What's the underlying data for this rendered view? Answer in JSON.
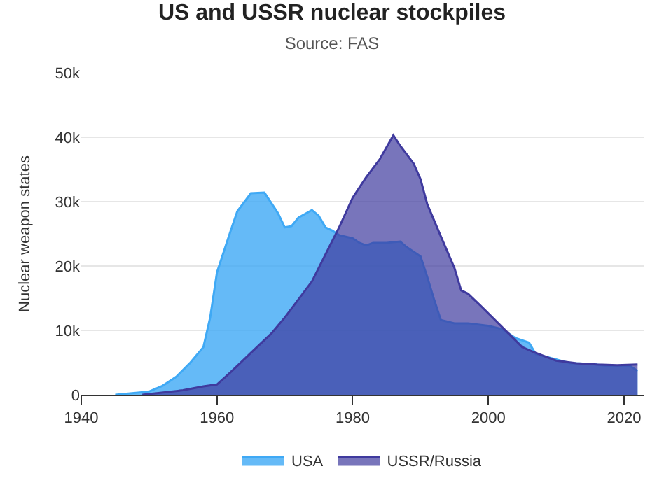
{
  "chart_data": {
    "type": "area",
    "title": "US and USSR nuclear stockpiles",
    "subtitle": "Source: FAS",
    "ylabel": "Nuclear weapon states",
    "xlim": [
      1940,
      2023
    ],
    "xticks": [
      1940,
      1960,
      1980,
      2000,
      2020
    ],
    "ylim": [
      0,
      50000
    ],
    "yticks": [
      {
        "value": 0,
        "label": "0"
      },
      {
        "value": 10000,
        "label": "10k"
      },
      {
        "value": 20000,
        "label": "20k"
      },
      {
        "value": 30000,
        "label": "30k"
      },
      {
        "value": 40000,
        "label": "40k"
      },
      {
        "value": 50000,
        "label": "50k"
      }
    ],
    "grid": "y",
    "legend": "bottom",
    "marker": "none",
    "series": [
      {
        "name": "USA",
        "color": "#3fa9f5",
        "x": [
          1945,
          1950,
          1952,
          1954,
          1956,
          1958,
          1959,
          1960,
          1962,
          1963,
          1965,
          1967,
          1969,
          1970,
          1971,
          1972,
          1974,
          1975,
          1976,
          1977,
          1978,
          1980,
          1981,
          1982,
          1983,
          1985,
          1987,
          1988,
          1990,
          1991,
          1992,
          1993,
          1995,
          1997,
          2000,
          2002,
          2003,
          2004,
          2006,
          2007,
          2010,
          2012,
          2015,
          2018,
          2021,
          2022
        ],
        "values": [
          0,
          500,
          1400,
          2800,
          4900,
          7400,
          12000,
          19000,
          25400,
          28500,
          31300,
          31400,
          28200,
          26000,
          26200,
          27500,
          28700,
          27800,
          26000,
          25500,
          24800,
          24300,
          23600,
          23200,
          23600,
          23600,
          23800,
          22900,
          21500,
          18300,
          14800,
          11600,
          11100,
          11100,
          10700,
          10200,
          9500,
          8800,
          8100,
          6300,
          5500,
          4900,
          4800,
          4400,
          4400,
          3700
        ]
      },
      {
        "name": "USSR/Russia",
        "color": "#3f3a9e",
        "x": [
          1949,
          1955,
          1958,
          1960,
          1962,
          1965,
          1968,
          1970,
          1972,
          1974,
          1976,
          1978,
          1980,
          1982,
          1984,
          1986,
          1987,
          1989,
          1990,
          1991,
          1993,
          1995,
          1996,
          1997,
          1999,
          2001,
          2003,
          2005,
          2007,
          2010,
          2013,
          2016,
          2019,
          2022
        ],
        "values": [
          0,
          700,
          1300,
          1600,
          3500,
          6500,
          9500,
          12000,
          14800,
          17600,
          21800,
          26000,
          30600,
          33800,
          36600,
          40300,
          38700,
          35900,
          33500,
          29600,
          24600,
          19700,
          16200,
          15700,
          13700,
          11600,
          9500,
          7400,
          6500,
          5300,
          4900,
          4700,
          4600,
          4700
        ]
      }
    ]
  }
}
